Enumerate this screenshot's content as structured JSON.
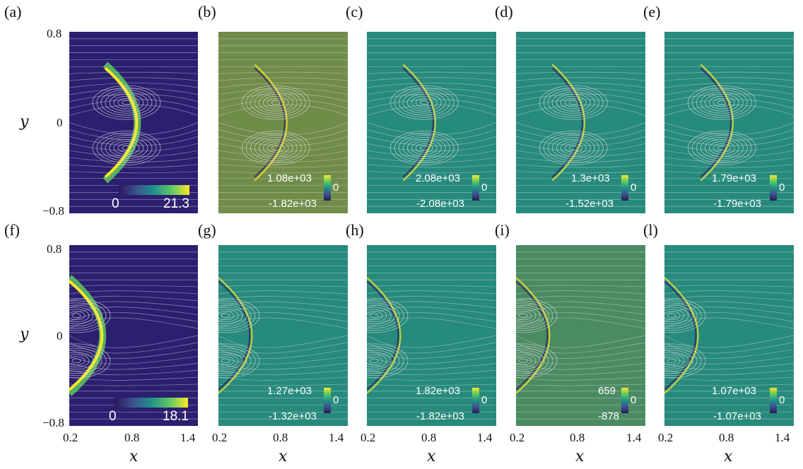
{
  "colors": {
    "magnitude_bg": "#2b1f70",
    "signed_bg_teal": "#268a7c",
    "signed_bg_olive": "#6f8c48",
    "signed_bg_mid": "#4a8b62",
    "streamline": "#d9d9d9",
    "viridis": [
      "#30155c",
      "#3b528b",
      "#21918c",
      "#5ec962",
      "#fde725"
    ]
  },
  "figure": {
    "panels": [
      {
        "id": "a",
        "label": "(a)",
        "type": "magnitude",
        "cmin": "0",
        "cmax": "21.3"
      },
      {
        "id": "b",
        "label": "(b)",
        "type": "signed",
        "cmax": "1.08e+03",
        "cmin": "-1.82e+03",
        "cmid": "0"
      },
      {
        "id": "c",
        "label": "(c)",
        "type": "signed",
        "cmax": "2.08e+03",
        "cmin": "-2.08e+03",
        "cmid": "0"
      },
      {
        "id": "d",
        "label": "(d)",
        "type": "signed",
        "cmax": "1.3e+03",
        "cmin": "-1.52e+03",
        "cmid": "0"
      },
      {
        "id": "e",
        "label": "(e)",
        "type": "signed",
        "cmax": "1.79e+03",
        "cmin": "-1.79e+03",
        "cmid": "0"
      },
      {
        "id": "f",
        "label": "(f)",
        "type": "magnitude",
        "cmin": "0",
        "cmax": "18.1"
      },
      {
        "id": "g",
        "label": "(g)",
        "type": "signed",
        "cmax": "1.27e+03",
        "cmin": "-1.32e+03",
        "cmid": "0"
      },
      {
        "id": "h",
        "label": "(h)",
        "type": "signed",
        "cmax": "1.82e+03",
        "cmin": "-1.82e+03",
        "cmid": "0"
      },
      {
        "id": "i",
        "label": "(i)",
        "type": "signed",
        "cmax": "659",
        "cmin": "-878",
        "cmid": "0"
      },
      {
        "id": "l",
        "label": "(l)",
        "type": "signed",
        "cmax": "1.07e+03",
        "cmin": "-1.07e+03",
        "cmid": "0"
      }
    ],
    "y_axis": {
      "label": "y",
      "ticks": [
        "0.8",
        "0",
        "−0.8"
      ]
    },
    "x_axis": {
      "label": "x",
      "ticks": [
        "0.2",
        "0.8",
        "1.4"
      ]
    }
  }
}
